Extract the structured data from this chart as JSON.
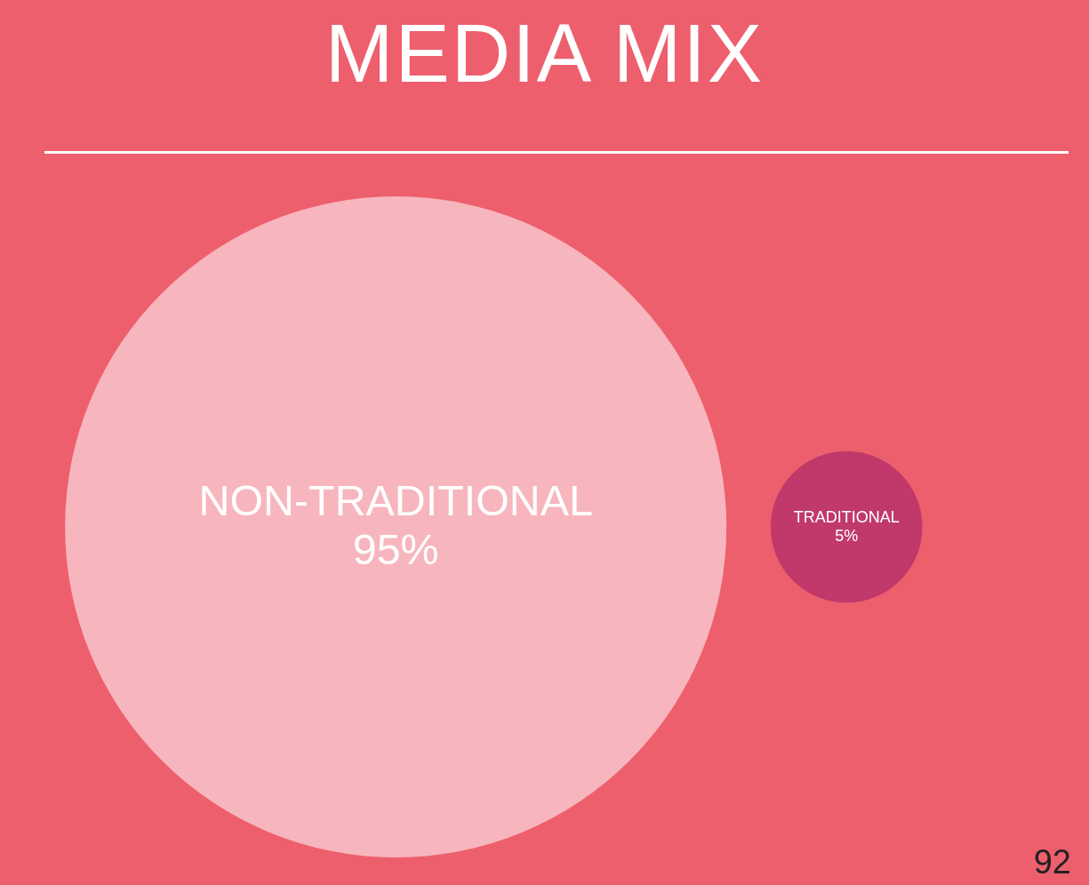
{
  "chart_data": {
    "type": "other",
    "title": "MEDIA MIX",
    "categories": [
      "NON-TRADITIONAL",
      "TRADITIONAL"
    ],
    "values": [
      95,
      5
    ],
    "value_labels": [
      "95%",
      "5%"
    ],
    "colors": [
      "#f7b6bd",
      "#c0396a"
    ],
    "annotations": [
      "92"
    ]
  }
}
